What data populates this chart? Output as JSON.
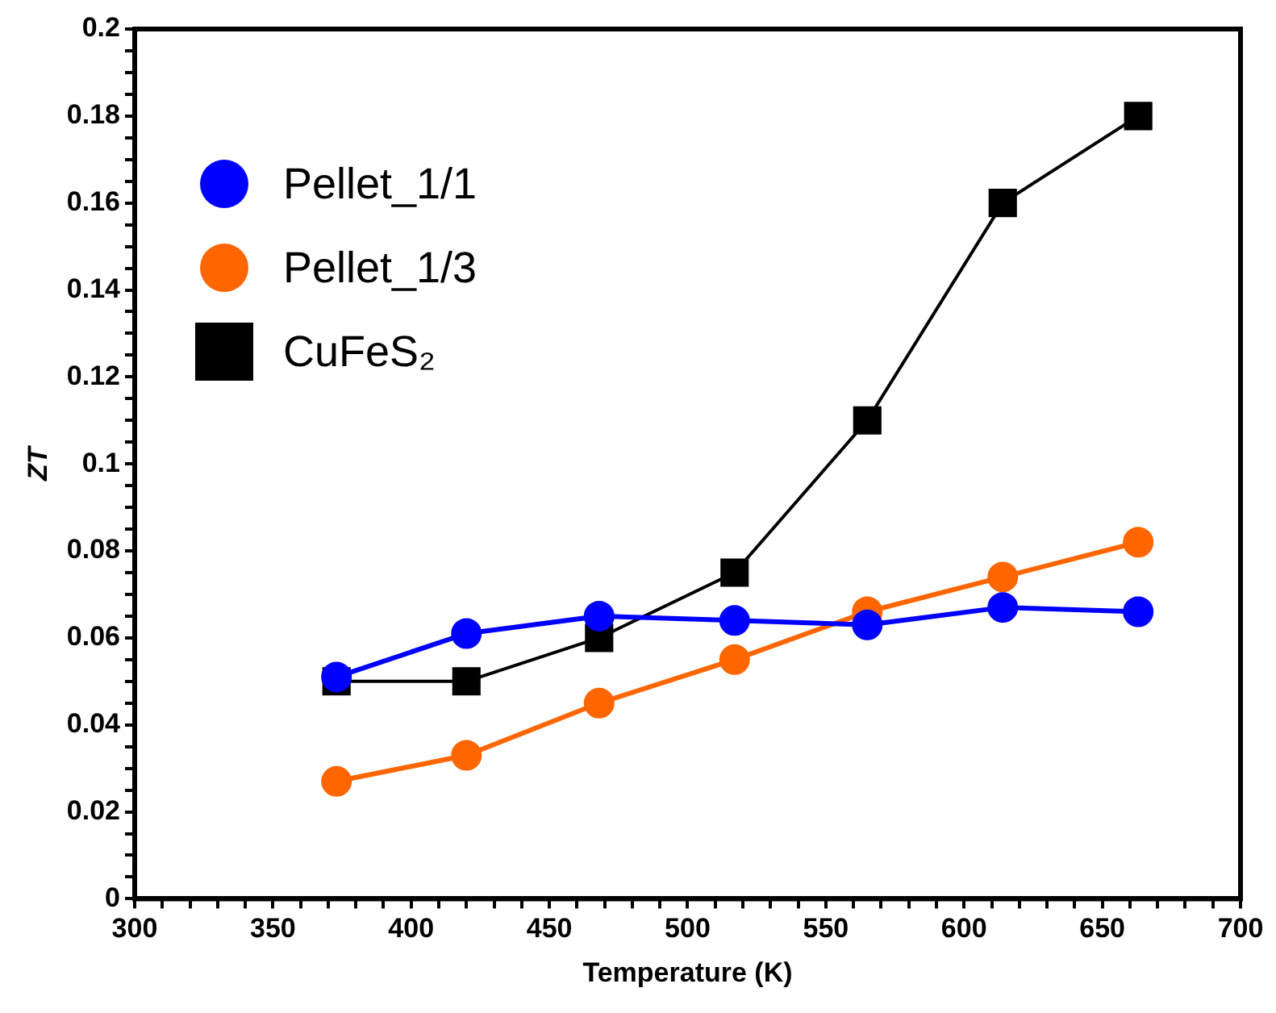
{
  "chart_data": {
    "type": "line",
    "xlabel": "Temperature (K)",
    "ylabel": "ZT",
    "x": [
      373,
      420,
      468,
      517,
      565,
      614,
      663
    ],
    "series": [
      {
        "name": "Pellet_1/1",
        "color": "#0000ff",
        "marker": "circle",
        "values": [
          0.051,
          0.061,
          0.065,
          0.064,
          0.063,
          0.067,
          0.066
        ]
      },
      {
        "name": "Pellet_1/3",
        "color": "#ff6600",
        "marker": "circle",
        "values": [
          0.027,
          0.033,
          0.045,
          0.055,
          0.066,
          0.074,
          0.082
        ]
      },
      {
        "name": "CuFeS₂",
        "color": "#000000",
        "marker": "square",
        "values": [
          0.05,
          0.05,
          0.06,
          0.075,
          0.11,
          0.16,
          0.18
        ]
      }
    ],
    "xlim": [
      300,
      700
    ],
    "xticks": [
      300,
      {
        "value": 310,
        "label": null
      },
      {
        "value": 320,
        "label": null
      },
      {
        "value": 330,
        "label": null
      },
      {
        "value": 340,
        "label": null
      },
      350,
      {
        "value": 360,
        "label": null
      },
      {
        "value": 370,
        "label": null
      },
      {
        "value": 380,
        "label": null
      },
      {
        "value": 390,
        "label": null
      },
      400,
      {
        "value": 410,
        "label": null
      },
      {
        "value": 420,
        "label": null
      },
      {
        "value": 430,
        "label": null
      },
      {
        "value": 440,
        "label": null
      },
      450,
      {
        "value": 460,
        "label": null
      },
      {
        "value": 470,
        "label": null
      },
      {
        "value": 480,
        "label": null
      },
      {
        "value": 490,
        "label": null
      },
      500,
      {
        "value": 510,
        "label": null
      },
      {
        "value": 520,
        "label": null
      },
      {
        "value": 530,
        "label": null
      },
      {
        "value": 540,
        "label": null
      },
      550,
      {
        "value": 560,
        "label": null
      },
      {
        "value": 570,
        "label": null
      },
      {
        "value": 580,
        "label": null
      },
      {
        "value": 590,
        "label": null
      },
      600,
      {
        "value": 610,
        "label": null
      },
      {
        "value": 620,
        "label": null
      },
      {
        "value": 630,
        "label": null
      },
      {
        "value": 640,
        "label": null
      },
      650,
      {
        "value": 660,
        "label": null
      },
      {
        "value": 670,
        "label": null
      },
      {
        "value": 680,
        "label": null
      },
      {
        "value": 690,
        "label": null
      },
      700
    ],
    "ylim": [
      0,
      0.2
    ],
    "yticks": [
      0,
      {
        "value": 0.005,
        "label": null
      },
      {
        "value": 0.01,
        "label": null
      },
      {
        "value": 0.015,
        "label": null
      },
      0.02,
      {
        "value": 0.025,
        "label": null
      },
      {
        "value": 0.03,
        "label": null
      },
      {
        "value": 0.035,
        "label": null
      },
      0.04,
      {
        "value": 0.045,
        "label": null
      },
      {
        "value": 0.05,
        "label": null
      },
      {
        "value": 0.055,
        "label": null
      },
      0.06,
      {
        "value": 0.065,
        "label": null
      },
      {
        "value": 0.07,
        "label": null
      },
      {
        "value": 0.075,
        "label": null
      },
      0.08,
      {
        "value": 0.085,
        "label": null
      },
      {
        "value": 0.09,
        "label": null
      },
      {
        "value": 0.095,
        "label": null
      },
      0.1,
      {
        "value": 0.105,
        "label": null
      },
      {
        "value": 0.11,
        "label": null
      },
      {
        "value": 0.115,
        "label": null
      },
      0.12,
      {
        "value": 0.125,
        "label": null
      },
      {
        "value": 0.13,
        "label": null
      },
      {
        "value": 0.135,
        "label": null
      },
      0.14,
      {
        "value": 0.145,
        "label": null
      },
      {
        "value": 0.15,
        "label": null
      },
      {
        "value": 0.155,
        "label": null
      },
      0.16,
      {
        "value": 0.165,
        "label": null
      },
      {
        "value": 0.17,
        "label": null
      },
      {
        "value": 0.175,
        "label": null
      },
      0.18,
      {
        "value": 0.185,
        "label": null
      },
      {
        "value": 0.19,
        "label": null
      },
      {
        "value": 0.195,
        "label": null
      },
      0.2
    ],
    "grid": false,
    "legend": "top left"
  }
}
